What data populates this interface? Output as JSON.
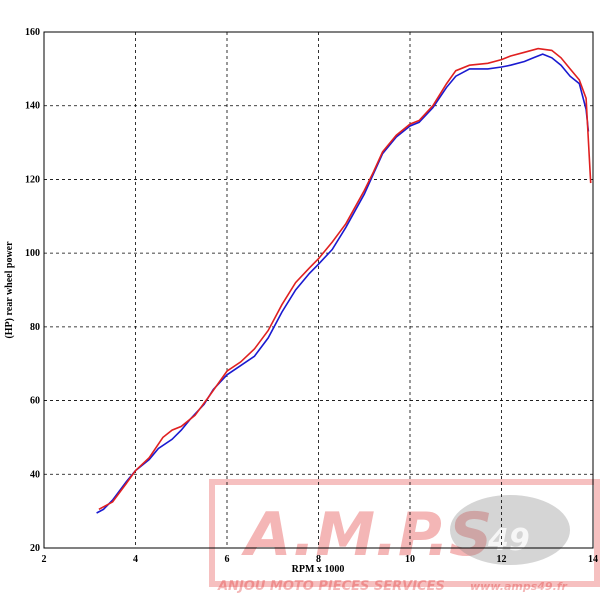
{
  "chart_data": {
    "type": "line",
    "x_label": "RPM x 1000",
    "y_label": "(HP) rear wheel power",
    "xlim": [
      2,
      14
    ],
    "xticks": [
      2,
      4,
      6,
      8,
      10,
      12,
      14
    ],
    "ylim": [
      20,
      160
    ],
    "yticks": [
      20,
      40,
      60,
      80,
      100,
      120,
      140,
      160
    ],
    "grid": true,
    "series": [
      {
        "color": "#1a1ad0",
        "x": [
          3.15,
          3.3,
          3.5,
          3.8,
          4,
          4.3,
          4.5,
          4.8,
          5,
          5.2,
          5.5,
          5.7,
          6,
          6.3,
          6.6,
          6.9,
          7.2,
          7.5,
          7.8,
          8,
          8.3,
          8.6,
          9,
          9.2,
          9.4,
          9.7,
          10,
          10.2,
          10.5,
          10.8,
          11,
          11.3,
          11.7,
          12,
          12.2,
          12.5,
          12.7,
          12.9,
          13.1,
          13.3,
          13.5,
          13.7,
          13.85,
          13.9
        ],
        "values": [
          29.5,
          30.5,
          33,
          38,
          41,
          44,
          47,
          49.5,
          52,
          55,
          59,
          63,
          67,
          69.5,
          72,
          77,
          84,
          90,
          94.5,
          97,
          101,
          107,
          116,
          121.5,
          127,
          131.5,
          134.5,
          135.5,
          139.5,
          145,
          148,
          150,
          150,
          150.5,
          151,
          152,
          153,
          154,
          153,
          151,
          148,
          146,
          139,
          133
        ]
      },
      {
        "color": "#e02020",
        "x": [
          3.2,
          3.5,
          3.8,
          4,
          4.3,
          4.6,
          4.8,
          5,
          5.3,
          5.6,
          6,
          6.3,
          6.6,
          6.9,
          7.2,
          7.5,
          7.8,
          8,
          8.3,
          8.6,
          9,
          9.2,
          9.4,
          9.7,
          10,
          10.2,
          10.5,
          10.8,
          11,
          11.3,
          11.7,
          12,
          12.2,
          12.5,
          12.8,
          13.1,
          13.3,
          13.5,
          13.7,
          13.85,
          13.95
        ],
        "values": [
          30.5,
          32.5,
          37.5,
          41,
          44.5,
          50,
          52,
          53,
          56,
          61,
          68,
          70.5,
          74,
          79,
          86,
          92,
          96,
          98.5,
          103,
          108,
          117,
          122,
          127.5,
          132,
          135,
          136,
          140,
          146,
          149.5,
          151,
          151.5,
          152.5,
          153.5,
          154.5,
          155.5,
          155,
          153,
          150,
          147,
          142,
          119
        ]
      }
    ]
  },
  "watermark": {
    "logo": "A.M.P.S",
    "badge": "49",
    "company": "ANJOU MOTO PIECES SERVICES",
    "url": "www.amps49.fr"
  }
}
